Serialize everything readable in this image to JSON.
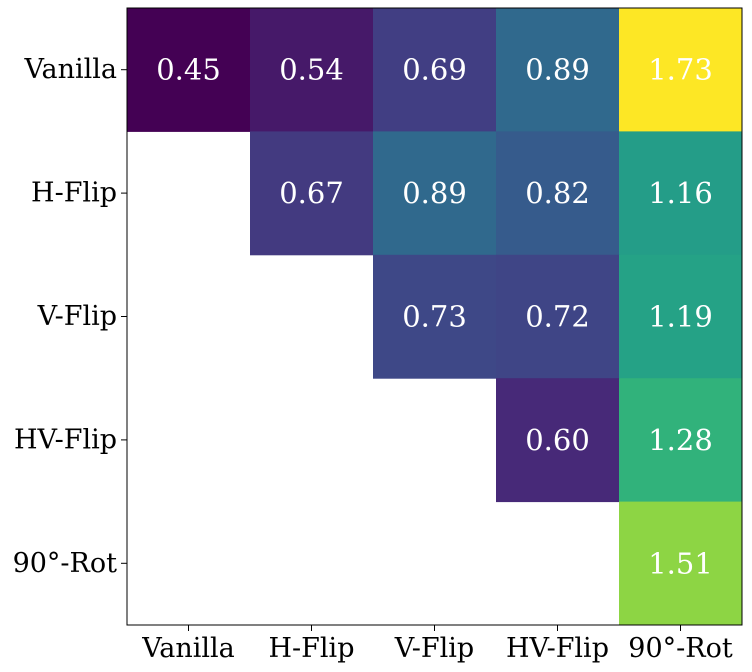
{
  "chart_data": {
    "type": "heatmap",
    "title": "",
    "xlabel": "",
    "ylabel": "",
    "x_categories": [
      "Vanilla",
      "H-Flip",
      "V-Flip",
      "HV-Flip",
      "90°-Rot"
    ],
    "y_categories": [
      "Vanilla",
      "H-Flip",
      "V-Flip",
      "HV-Flip",
      "90°-Rot"
    ],
    "colormap": "viridis",
    "color_range": [
      0.45,
      1.73
    ],
    "layout": "upper-triangular",
    "grid": false,
    "values": [
      [
        "0.45",
        "0.54",
        "0.69",
        "0.89",
        "1.73"
      ],
      [
        null,
        "0.67",
        "0.89",
        "0.82",
        "1.16"
      ],
      [
        null,
        null,
        "0.73",
        "0.72",
        "1.19"
      ],
      [
        null,
        null,
        null,
        "0.60",
        "1.28"
      ],
      [
        null,
        null,
        null,
        null,
        "1.51"
      ]
    ]
  }
}
